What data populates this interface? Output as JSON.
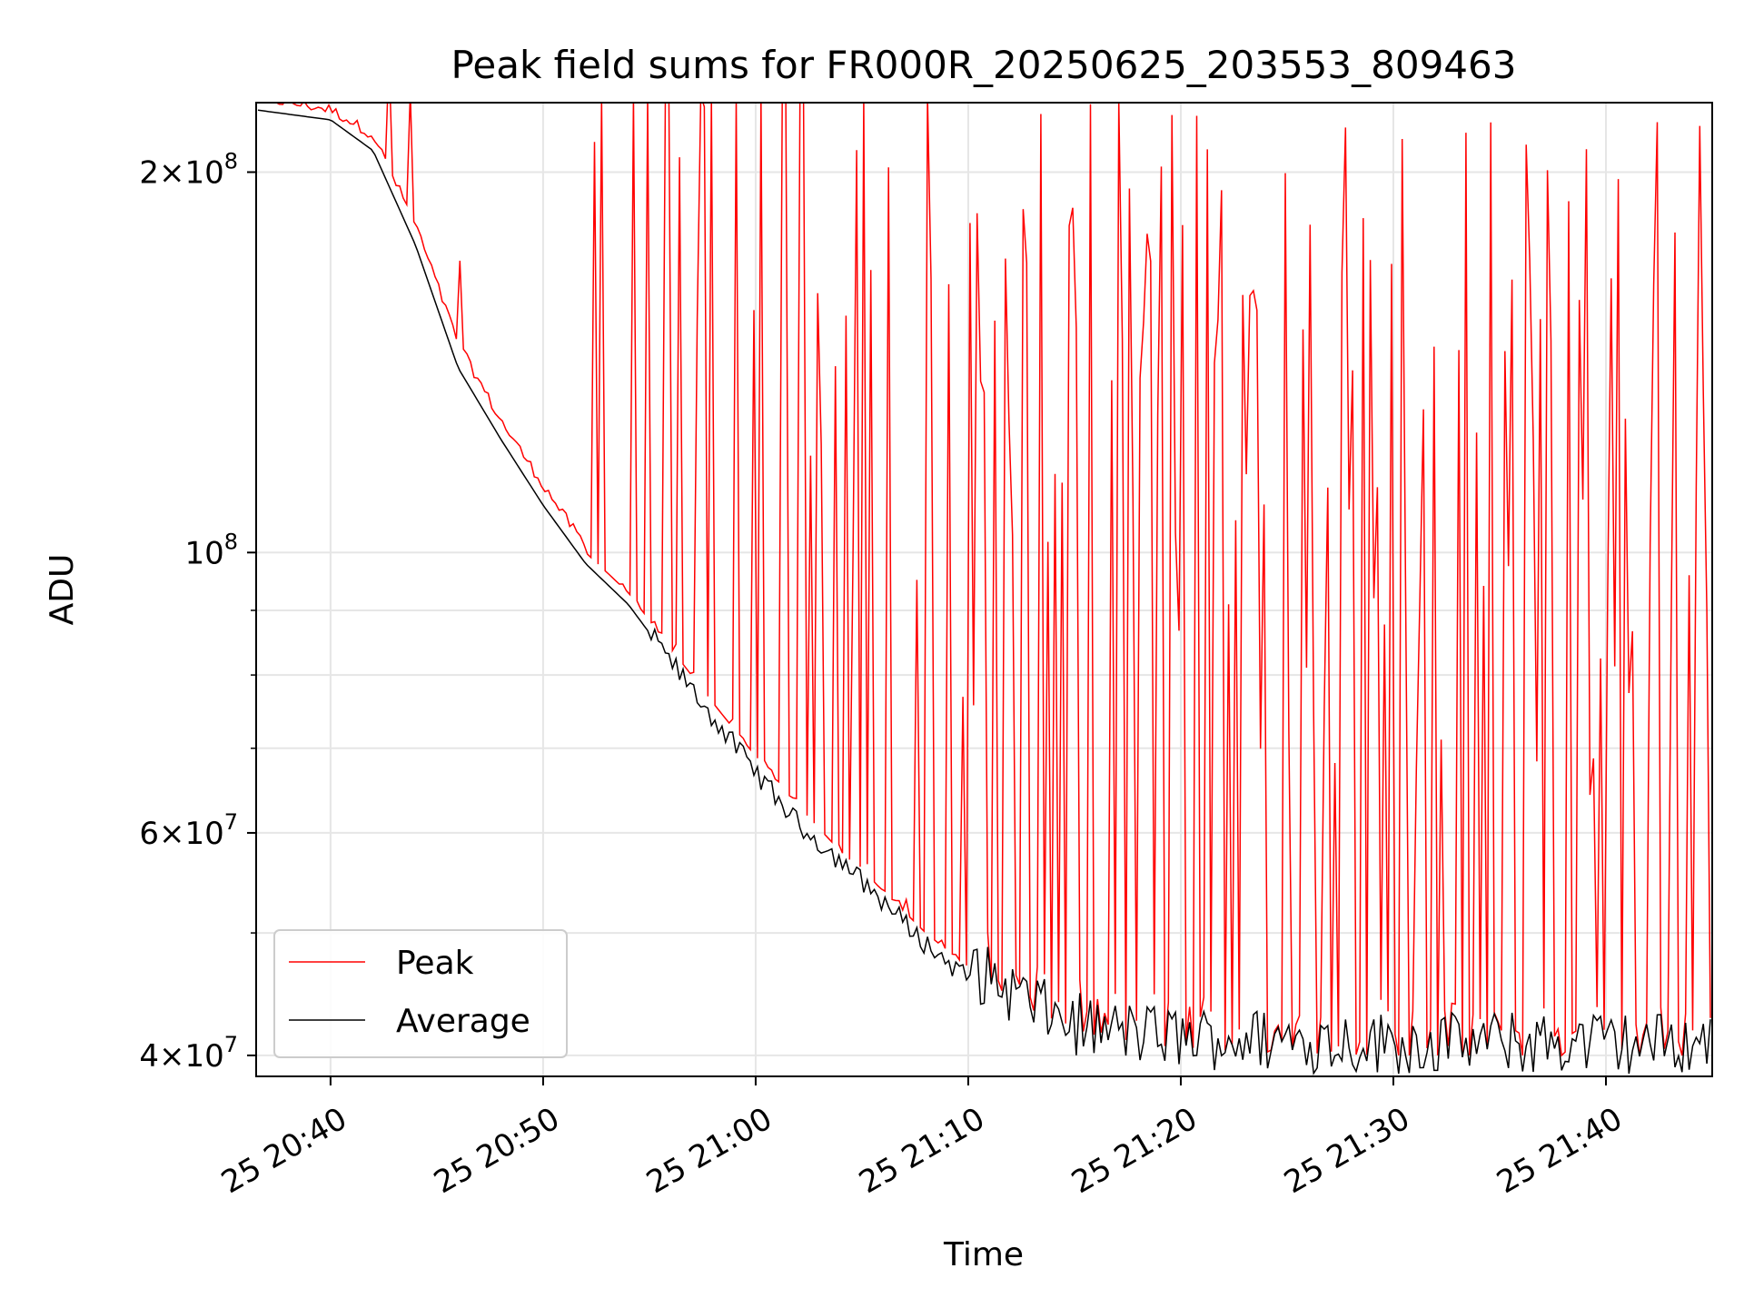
{
  "chart_data": {
    "type": "line",
    "title": "Peak field sums for FR000R_20250625_203553_809463",
    "xlabel": "Time",
    "ylabel": "ADU",
    "y_scale": "log",
    "ylim": [
      38500000,
      227000000
    ],
    "xlim": [
      "2025-06-25 20:36:30",
      "2025-06-25 21:45:00"
    ],
    "grid": true,
    "legend_position": "lower-left",
    "x_ticks": [
      {
        "value": "2025-06-25 20:40:00",
        "label": "25 20:40"
      },
      {
        "value": "2025-06-25 20:50:00",
        "label": "25 20:50"
      },
      {
        "value": "2025-06-25 21:00:00",
        "label": "25 21:00"
      },
      {
        "value": "2025-06-25 21:10:00",
        "label": "25 21:10"
      },
      {
        "value": "2025-06-25 21:20:00",
        "label": "25 21:20"
      },
      {
        "value": "2025-06-25 21:30:00",
        "label": "25 21:30"
      },
      {
        "value": "2025-06-25 21:40:00",
        "label": "25 21:40"
      }
    ],
    "y_ticks": [
      {
        "value": 40000000,
        "mantissa": "4",
        "exponent": "7"
      },
      {
        "value": 60000000,
        "mantissa": "6",
        "exponent": "7"
      },
      {
        "value": 100000000,
        "mantissa": "",
        "exponent": "8"
      },
      {
        "value": 200000000,
        "mantissa": "2",
        "exponent": "8"
      }
    ],
    "y_minor_ticks": [
      50000000,
      70000000,
      80000000,
      90000000
    ],
    "series": [
      {
        "name": "Peak",
        "color": "#ff0000",
        "note": "near the Average trend until ~20:52, then spikes between the Average and ~2.3e8",
        "x": [
          "2025-06-25 20:36:30",
          "2025-06-25 20:40:00",
          "2025-06-25 20:42:00",
          "2025-06-25 20:44:00",
          "2025-06-25 20:46:00",
          "2025-06-25 20:48:00",
          "2025-06-25 20:50:00",
          "2025-06-25 20:52:00",
          "2025-06-25 20:54:00",
          "2025-06-25 20:56:00",
          "2025-06-25 20:58:00",
          "2025-06-25 21:00:00",
          "2025-06-25 21:02:00",
          "2025-06-25 21:04:00",
          "2025-06-25 21:06:00",
          "2025-06-25 21:08:00",
          "2025-06-25 21:10:00",
          "2025-06-25 21:12:00",
          "2025-06-25 21:14:00",
          "2025-06-25 21:16:00",
          "2025-06-25 21:20:00",
          "2025-06-25 21:25:00",
          "2025-06-25 21:30:00",
          "2025-06-25 21:35:00",
          "2025-06-25 21:40:00",
          "2025-06-25 21:45:00"
        ],
        "y": [
          227000000,
          222000000,
          212000000,
          180000000,
          145000000,
          126000000,
          112000000,
          100000000,
          93000000,
          84000000,
          76000000,
          69000000,
          63000000,
          58000000,
          54000000,
          50000000,
          47000000,
          44500000,
          42500000,
          41500000,
          40500000,
          40200000,
          40000000,
          40000000,
          40000000,
          40000000
        ],
        "peak_spike_max": 230000000
      },
      {
        "name": "Average",
        "color": "#000000",
        "note": "monotone decay from ~2.24e8 to ~4.0e7 with noise after 21:10",
        "x": [
          "2025-06-25 20:36:30",
          "2025-06-25 20:40:00",
          "2025-06-25 20:42:00",
          "2025-06-25 20:44:00",
          "2025-06-25 20:46:00",
          "2025-06-25 20:48:00",
          "2025-06-25 20:50:00",
          "2025-06-25 20:52:00",
          "2025-06-25 20:54:00",
          "2025-06-25 20:56:00",
          "2025-06-25 20:58:00",
          "2025-06-25 21:00:00",
          "2025-06-25 21:02:00",
          "2025-06-25 21:04:00",
          "2025-06-25 21:06:00",
          "2025-06-25 21:08:00",
          "2025-06-25 21:10:00",
          "2025-06-25 21:12:00",
          "2025-06-25 21:14:00",
          "2025-06-25 21:16:00",
          "2025-06-25 21:20:00",
          "2025-06-25 21:25:00",
          "2025-06-25 21:30:00",
          "2025-06-25 21:35:00",
          "2025-06-25 21:40:00",
          "2025-06-25 21:45:00"
        ],
        "y": [
          224000000,
          220000000,
          208000000,
          175000000,
          140000000,
          123000000,
          109000000,
          98000000,
          91000000,
          82000000,
          74000000,
          67000000,
          61000000,
          57000000,
          53000000,
          49000000,
          46000000,
          44000000,
          42000000,
          41000000,
          40400000,
          40200000,
          40000000,
          40000000,
          40000000,
          40000000
        ]
      }
    ]
  }
}
